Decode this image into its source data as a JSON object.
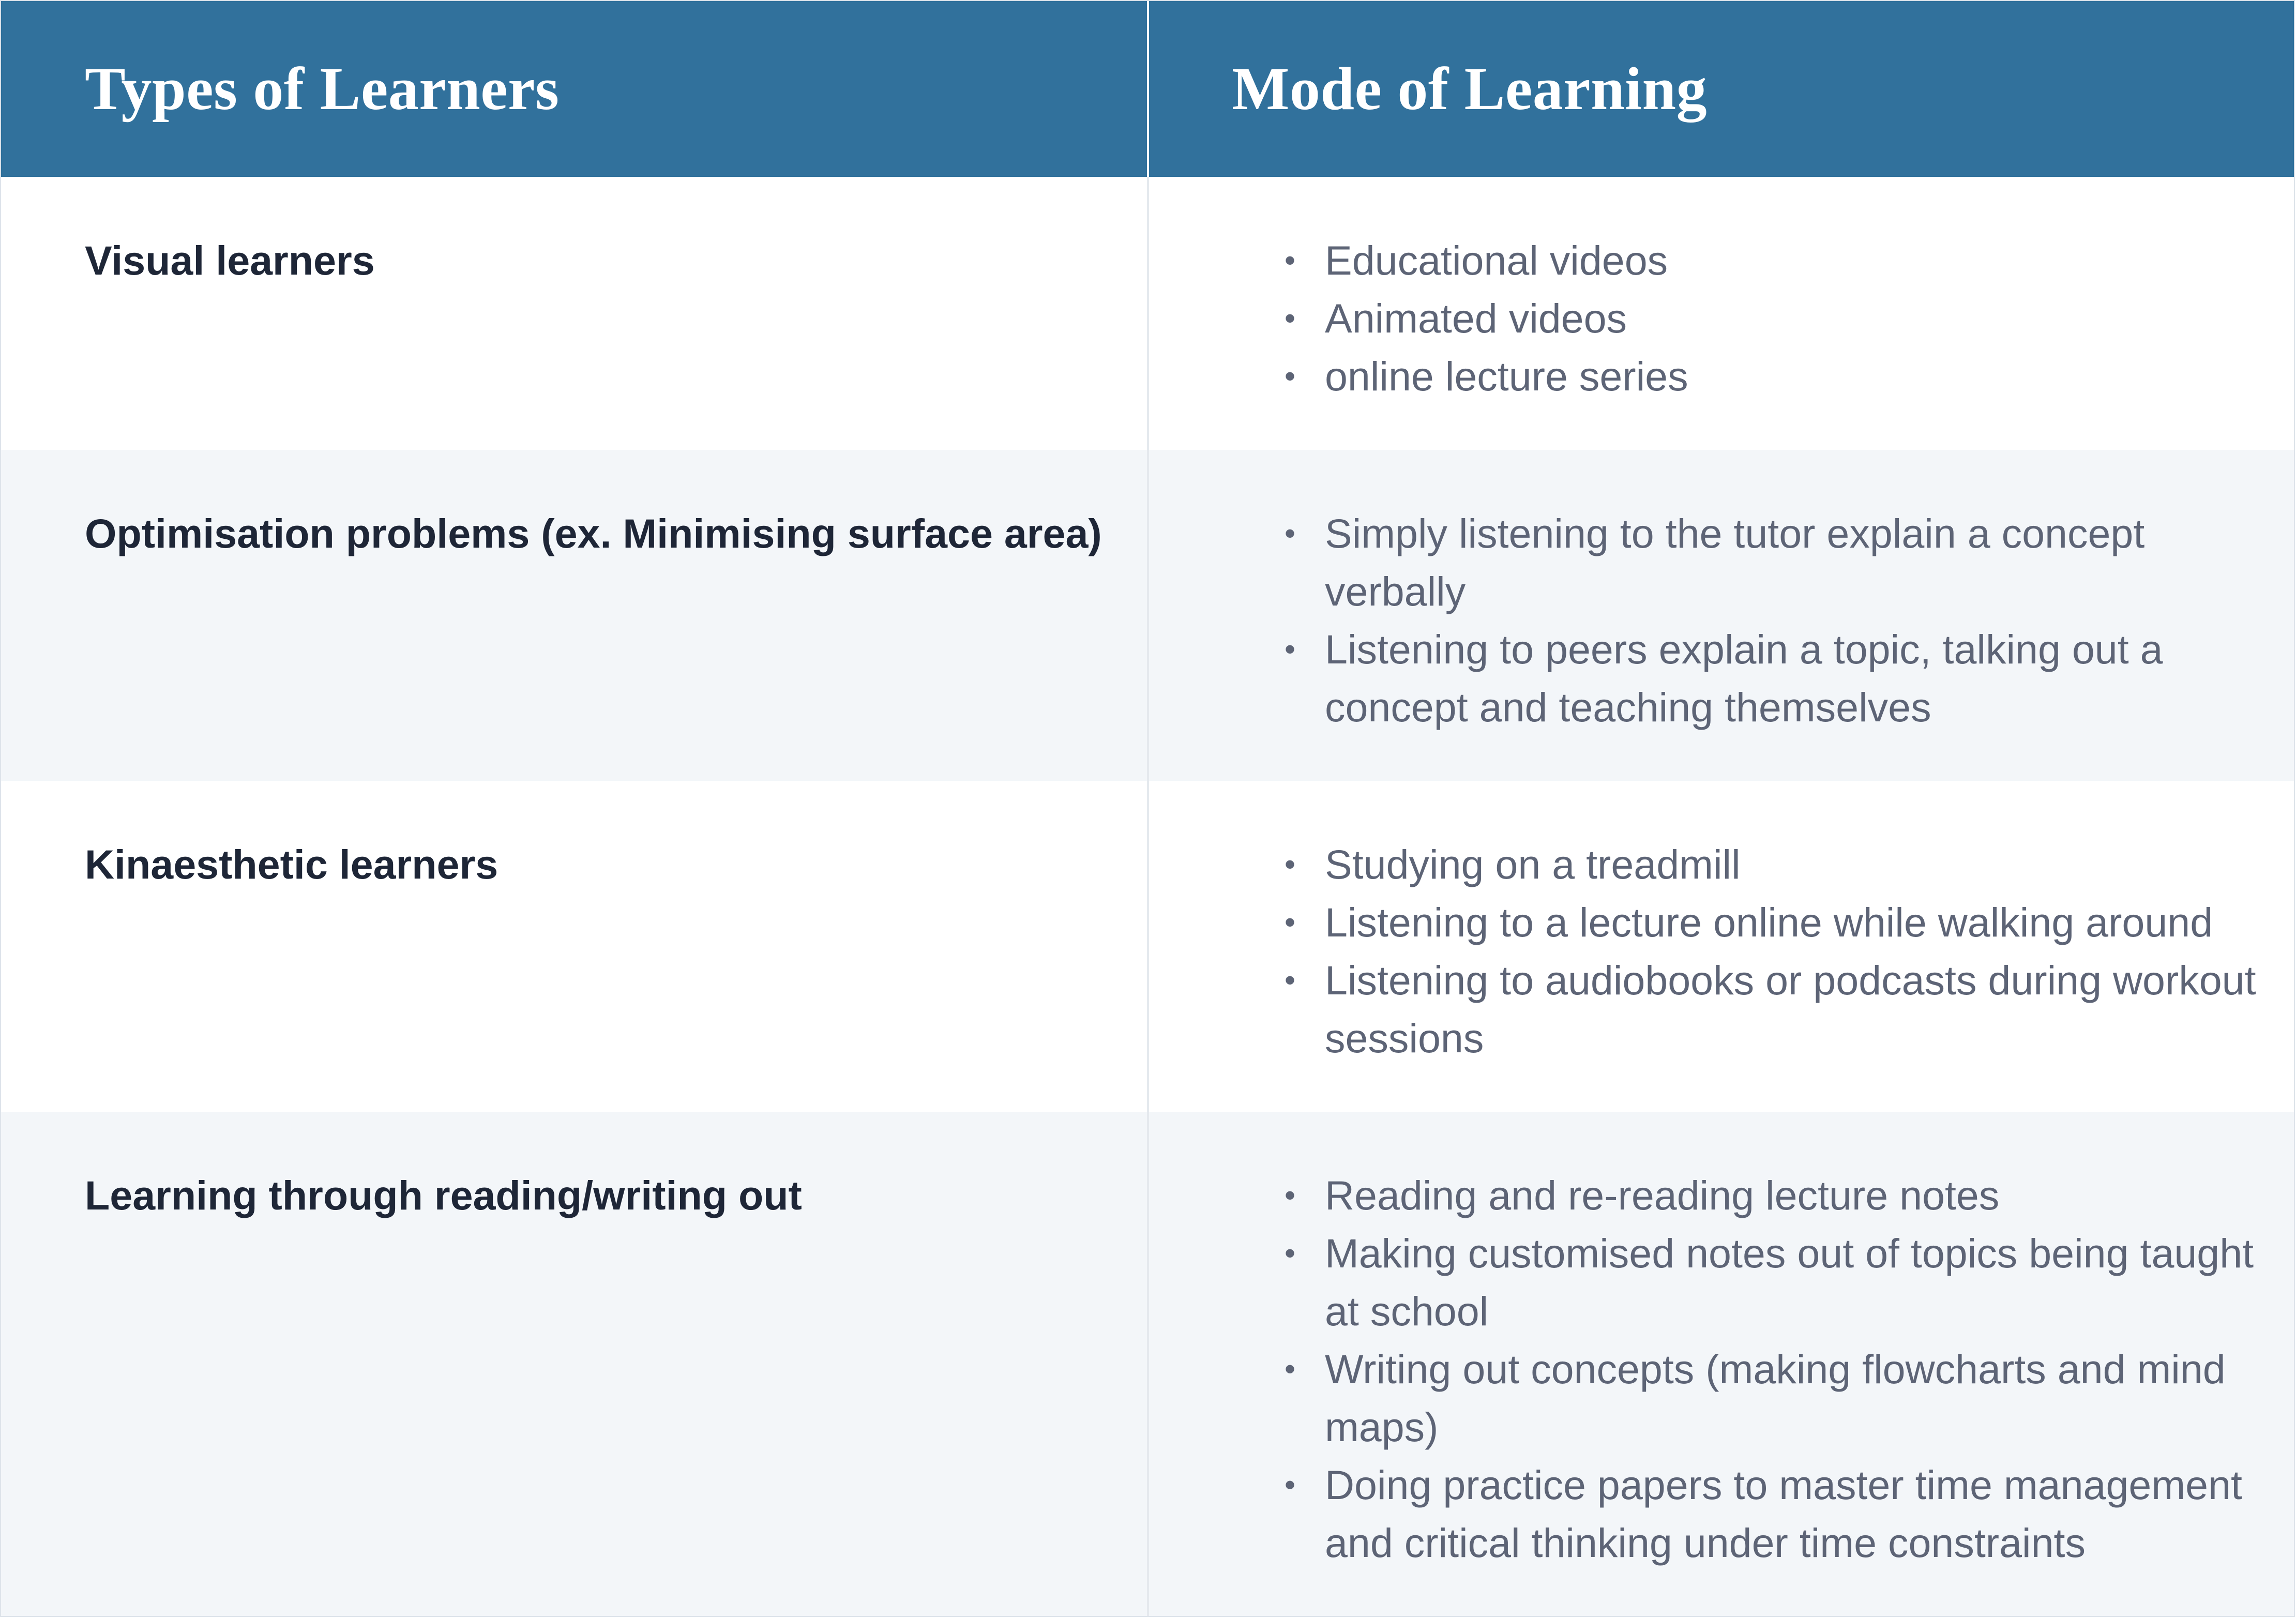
{
  "header": {
    "col1": "Types of Learners",
    "col2": "Mode of Learning"
  },
  "colors": {
    "header_bg": "#31719c",
    "header_text": "#ffffff",
    "row_alt_bg": "#f3f6f9",
    "type_text": "#1e2637",
    "mode_text": "#5d6476"
  },
  "rows": [
    {
      "type": "Visual learners",
      "modes": [
        "Educational videos",
        "Animated videos",
        "online lecture series"
      ]
    },
    {
      "type": "Optimisation problems (ex. Minimising surface area)",
      "modes": [
        "Simply listening to the tutor explain a concept verbally",
        "Listening to peers explain a topic, talking out a concept and teaching themselves"
      ]
    },
    {
      "type": "Kinaesthetic learners",
      "modes": [
        "Studying on a treadmill",
        "Listening to a lecture online while walking around",
        "Listening to audiobooks or podcasts during workout sessions"
      ]
    },
    {
      "type": "Learning through reading/writing out",
      "modes": [
        "Reading and re-reading lecture notes",
        "Making customised notes out of topics being taught at school",
        "Writing out concepts (making flowcharts and mind maps)",
        "Doing practice papers to master time management and critical thinking under time constraints"
      ]
    }
  ]
}
